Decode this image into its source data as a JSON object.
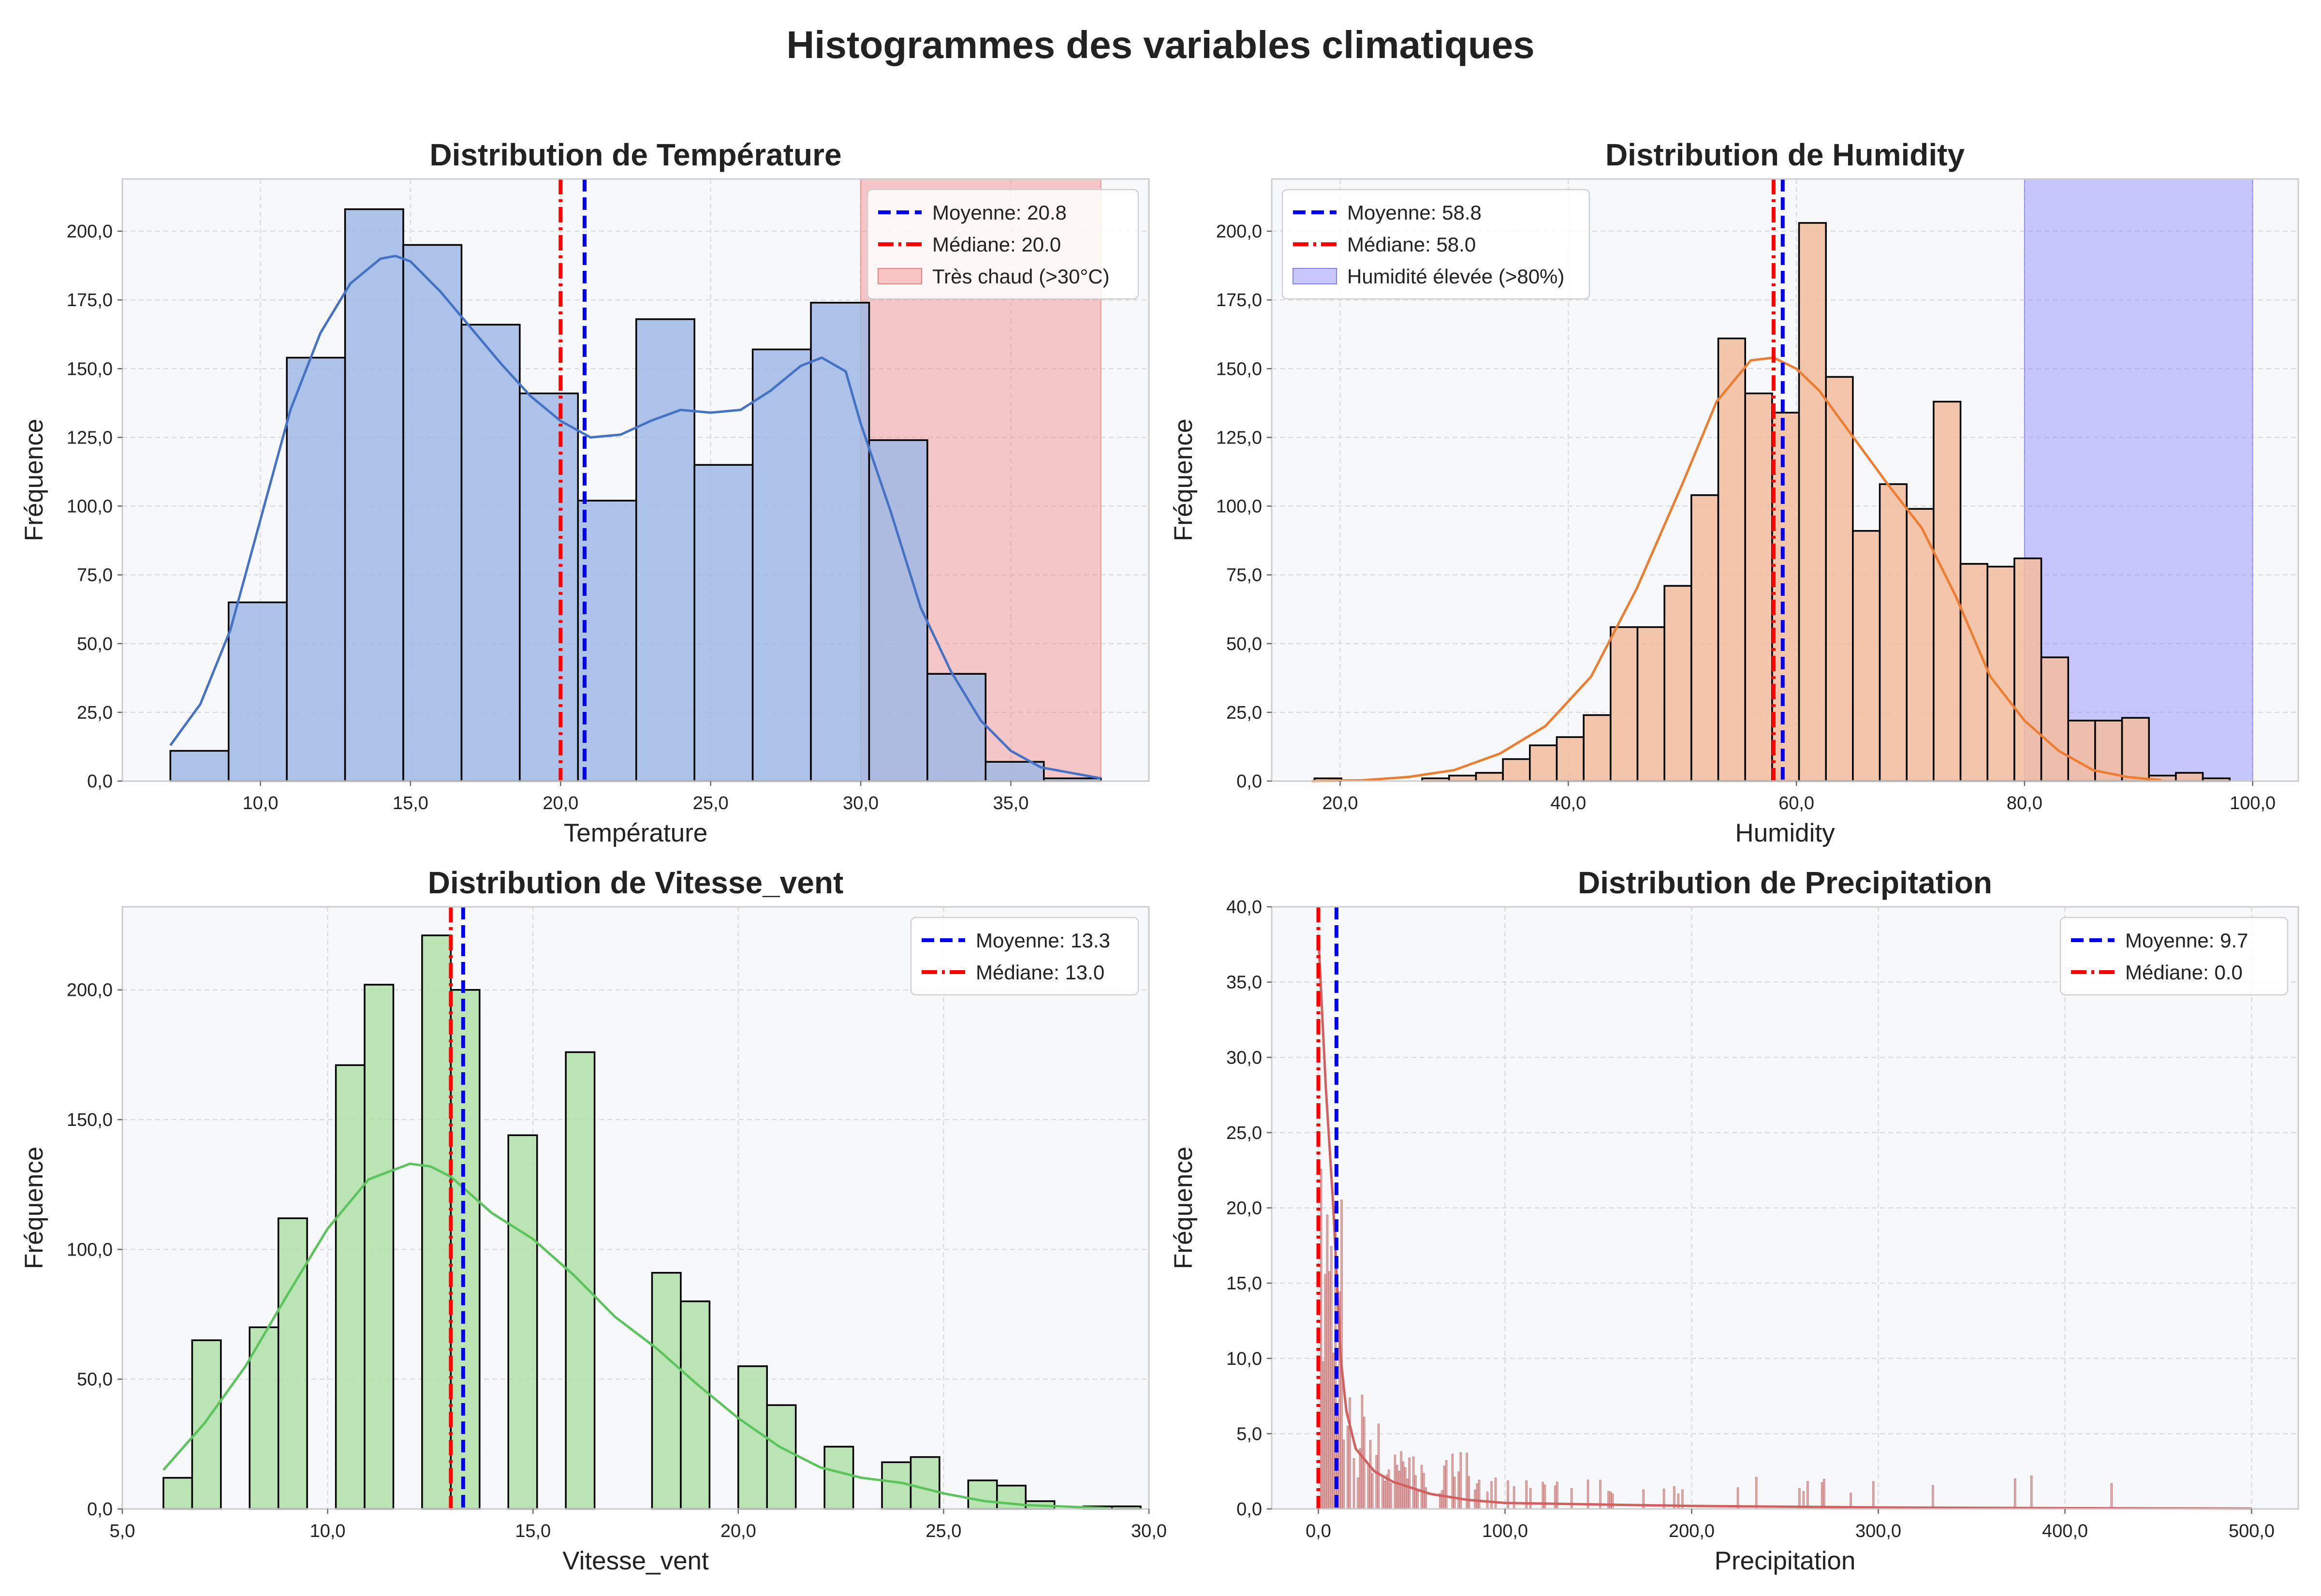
{
  "figure": {
    "suptitle": "Histogrammes des variables climatiques"
  },
  "chart_data": [
    {
      "type": "bar",
      "title": "Distribution de Température",
      "xlabel": "Température",
      "ylabel": "Fréquence",
      "xlim": [
        5.4,
        39.6
      ],
      "ylim": [
        0,
        219
      ],
      "xticks": [
        10,
        15,
        20,
        25,
        30,
        35
      ],
      "xtick_labels": [
        "10,0",
        "15,0",
        "20,0",
        "25,0",
        "30,0",
        "35,0"
      ],
      "yticks": [
        0,
        25,
        50,
        75,
        100,
        125,
        150,
        175,
        200
      ],
      "ytick_labels": [
        "0,0",
        "25,0",
        "50,0",
        "75,0",
        "100,0",
        "125,0",
        "150,0",
        "175,0",
        "200,0"
      ],
      "bin_edges": [
        7.0,
        8.94,
        10.88,
        12.82,
        14.76,
        16.7,
        18.64,
        20.58,
        22.52,
        24.46,
        26.4,
        28.34,
        30.28,
        32.22,
        34.16,
        36.1,
        38.0
      ],
      "counts": [
        11,
        65,
        154,
        208,
        195,
        166,
        141,
        102,
        168,
        115,
        157,
        174,
        124,
        39,
        7,
        1
      ],
      "kde": {
        "x": [
          7.0,
          8.0,
          9.0,
          10.0,
          11.0,
          12.0,
          13.0,
          14.0,
          14.5,
          15.0,
          16.0,
          17.0,
          18.0,
          19.0,
          20.0,
          21.0,
          22.0,
          23.0,
          24.0,
          25.0,
          26.0,
          27.0,
          28.0,
          28.7,
          29.5,
          30.0,
          31.0,
          32.0,
          33.0,
          34.0,
          35.0,
          36.0,
          37.0,
          38.0
        ],
        "y": [
          13,
          28,
          55,
          95,
          135,
          163,
          181,
          190,
          191,
          189,
          178,
          165,
          152,
          140,
          131,
          125,
          126,
          131,
          135,
          134,
          135,
          142,
          151,
          154,
          149,
          130,
          98,
          63,
          40,
          22,
          11,
          5,
          3,
          1
        ]
      },
      "mean": 20.8,
      "median": 20.0,
      "highlight": {
        "range": [
          30,
          38
        ],
        "color": "#f08080"
      },
      "legend": [
        "Moyenne: 20.8",
        "Médiane: 20.0",
        "Très chaud (>30°C)"
      ],
      "legend_placement": "top-right",
      "bar_color": "#a0b8e4",
      "kde_color": "#4472c4"
    },
    {
      "type": "bar",
      "title": "Distribution de Humidity",
      "xlabel": "Humidity",
      "ylabel": "Fréquence",
      "xlim": [
        14,
        104
      ],
      "ylim": [
        0,
        219
      ],
      "xticks": [
        20,
        40,
        60,
        80,
        100
      ],
      "xtick_labels": [
        "20,0",
        "40,0",
        "60,0",
        "80,0",
        "100,0"
      ],
      "yticks": [
        0,
        25,
        50,
        75,
        100,
        125,
        150,
        175,
        200
      ],
      "ytick_labels": [
        "0,0",
        "25,0",
        "50,0",
        "75,0",
        "100,0",
        "125,0",
        "150,0",
        "175,0",
        "200,0"
      ],
      "bin_start": 17.75,
      "bin_width": 2.36,
      "counts": [
        1,
        0,
        0,
        0,
        1,
        2,
        3,
        8,
        13,
        16,
        24,
        56,
        56,
        71,
        104,
        161,
        141,
        134,
        203,
        147,
        91,
        108,
        99,
        138,
        79,
        78,
        81,
        45,
        22,
        22,
        23,
        2,
        3,
        1
      ],
      "kde": {
        "x": [
          17.5,
          22,
          26,
          30,
          34,
          38,
          42,
          46,
          50,
          53,
          56,
          58,
          60,
          62,
          65,
          68,
          71,
          74,
          77,
          80,
          83,
          86,
          89,
          92
        ],
        "y": [
          0,
          0.3,
          1.5,
          4,
          10,
          20,
          38,
          70,
          108,
          138,
          153,
          154,
          150,
          142,
          125,
          108,
          92,
          67,
          38,
          22,
          11,
          4,
          1.5,
          0.3
        ]
      },
      "mean": 58.8,
      "median": 58.0,
      "highlight": {
        "range": [
          80,
          100
        ],
        "color": "#8080ff"
      },
      "legend": [
        "Moyenne: 58.8",
        "Médiane: 58.0",
        "Humidité élevée (>80%)"
      ],
      "legend_placement": "top-left",
      "bar_color": "#f2bc9c",
      "kde_color": "#ed7d31"
    },
    {
      "type": "bar",
      "title": "Distribution de Vitesse_vent",
      "xlabel": "Vitesse_vent",
      "ylabel": "Fréquence",
      "xlim": [
        5,
        30
      ],
      "ylim": [
        0,
        232
      ],
      "xticks": [
        5,
        10,
        15,
        20,
        25,
        30
      ],
      "xtick_labels": [
        "5,0",
        "10,0",
        "15,0",
        "20,0",
        "25,0",
        "30,0"
      ],
      "yticks": [
        0,
        50,
        100,
        150,
        200
      ],
      "ytick_labels": [
        "0,0",
        "50,0",
        "100,0",
        "150,0",
        "200,0"
      ],
      "bin_start": 6.0,
      "bin_width": 0.7,
      "counts": [
        12,
        65,
        0,
        70,
        112,
        0,
        171,
        202,
        0,
        221,
        200,
        0,
        144,
        0,
        176,
        0,
        0,
        91,
        80,
        0,
        55,
        40,
        0,
        24,
        0,
        18,
        20,
        0,
        11,
        9,
        3,
        0,
        1,
        1
      ],
      "kde": {
        "x": [
          6,
          7,
          8,
          9,
          10,
          11,
          12,
          12.5,
          13,
          14,
          15,
          16,
          17,
          18,
          19,
          20,
          21,
          22,
          23,
          24,
          25,
          26,
          27,
          29
        ],
        "y": [
          15,
          33,
          55,
          82,
          108,
          127,
          133,
          132,
          128,
          114,
          104,
          90,
          74,
          62,
          48,
          35,
          24,
          16,
          12,
          10,
          6,
          3,
          1.5,
          0.3
        ]
      },
      "mean": 13.3,
      "median": 13.0,
      "legend": [
        "Moyenne: 13.3",
        "Médiane: 13.0"
      ],
      "legend_placement": "top-right",
      "bar_color": "#b0e0a8",
      "kde_color": "#5cc45c"
    },
    {
      "type": "bar",
      "title": "Distribution de Precipitation",
      "xlabel": "Precipitation",
      "ylabel": "Fréquence",
      "xlim": [
        -25,
        525
      ],
      "ylim": [
        0,
        40
      ],
      "xticks": [
        0,
        100,
        200,
        300,
        400,
        500
      ],
      "xtick_labels": [
        "0,0",
        "100,0",
        "200,0",
        "300,0",
        "400,0",
        "500,0"
      ],
      "yticks": [
        0,
        5,
        10,
        15,
        20,
        25,
        30,
        35,
        40
      ],
      "ytick_labels": [
        "0,0",
        "5,0",
        "10,0",
        "15,0",
        "20,0",
        "25,0",
        "30,0",
        "35,0",
        "40,0"
      ],
      "kde": {
        "x": [
          0,
          2,
          4,
          6,
          8,
          10,
          12,
          15,
          20,
          30,
          40,
          60,
          80,
          100,
          150,
          200,
          300,
          400,
          500
        ],
        "y": [
          38,
          33,
          28,
          24,
          20,
          15,
          10,
          6.5,
          4,
          2.5,
          1.8,
          1,
          0.6,
          0.4,
          0.3,
          0.2,
          0.1,
          0.05,
          0.02
        ]
      },
      "mean": 9.7,
      "median": 0.0,
      "legend": [
        "Moyenne: 9.7",
        "Médiane: 0.0"
      ],
      "legend_placement": "top-right",
      "bar_color": "#e0a0a0",
      "kde_color": "#d45f5f"
    }
  ]
}
